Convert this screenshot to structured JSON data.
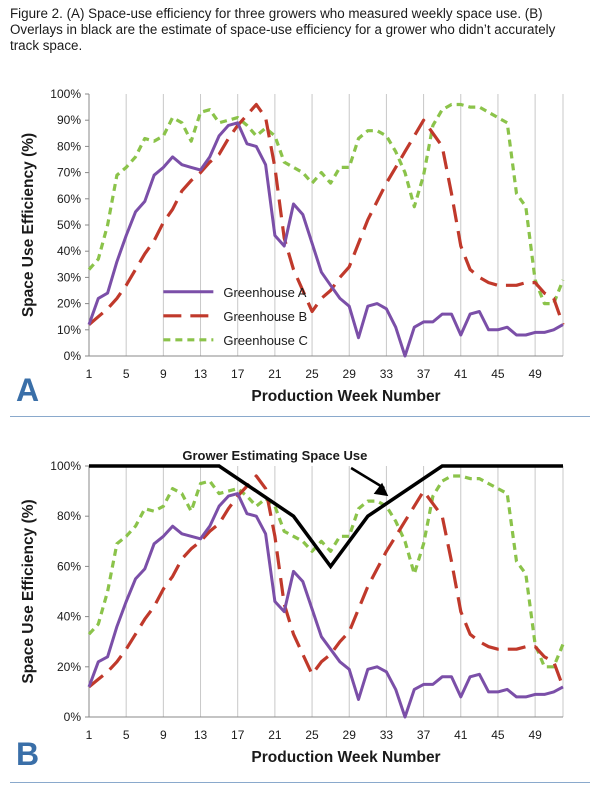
{
  "caption": "Figure 2. (A) Space-use efficiency for three growers who measured weekly space use. (B) Overlays in black are the estimate of space-use efficiency for a grower who didn’t accurately track space.",
  "colors": {
    "A": "#7b4fa8",
    "B": "#c0392b",
    "C": "#8bc34a",
    "grower": "#000000",
    "grid": "#c8c8c8",
    "letter": "#3a6fa8"
  },
  "chart_data": [
    {
      "type": "line",
      "panel_label": "A",
      "xlabel": "Production Week Number",
      "ylabel": "Space Use Efficiency (%)",
      "ylim": [
        0,
        100
      ],
      "yticks": [
        0,
        10,
        20,
        30,
        40,
        50,
        60,
        70,
        80,
        90,
        100
      ],
      "ytick_suffix": "%",
      "xlim": [
        1,
        52
      ],
      "xticks": [
        1,
        5,
        9,
        13,
        17,
        21,
        25,
        29,
        33,
        37,
        41,
        45,
        49
      ],
      "grid": "vertical",
      "legend": "inside-lower-left",
      "series": [
        {
          "name": "Greenhouse A",
          "style": "solid",
          "color_key": "A",
          "values": [
            12,
            22,
            24,
            36,
            46,
            55,
            59,
            69,
            72,
            76,
            73,
            72,
            71,
            76,
            84,
            88,
            89,
            81,
            80,
            73,
            46,
            42,
            58,
            54,
            43,
            32,
            27,
            22,
            19,
            7,
            19,
            20,
            18,
            11,
            0,
            11,
            13,
            13,
            16,
            16,
            8,
            16,
            17,
            10,
            10,
            11,
            8,
            8,
            9,
            9,
            10,
            12
          ]
        },
        {
          "name": "Greenhouse B",
          "style": "dashed",
          "color_key": "B",
          "values": [
            12,
            15,
            18,
            22,
            27,
            33,
            39,
            44,
            51,
            56,
            63,
            67,
            70,
            74,
            77,
            83,
            88,
            92,
            96,
            91,
            72,
            45,
            33,
            25,
            17,
            22,
            25,
            30,
            34,
            43,
            52,
            59,
            66,
            72,
            78,
            84,
            90,
            85,
            80,
            62,
            42,
            33,
            30,
            28,
            27,
            27,
            27,
            28,
            28,
            24,
            22,
            12
          ]
        },
        {
          "name": "Greenhouse C",
          "style": "dashed",
          "color_key": "C",
          "values": [
            33,
            37,
            50,
            69,
            72,
            76,
            83,
            82,
            84,
            91,
            89,
            82,
            93,
            94,
            89,
            90,
            91,
            88,
            84,
            87,
            84,
            74,
            72,
            70,
            66,
            70,
            66,
            72,
            72,
            83,
            86,
            86,
            84,
            78,
            70,
            57,
            69,
            88,
            94,
            96,
            96,
            95,
            95,
            93,
            91,
            89,
            62,
            57,
            29,
            20,
            20,
            29
          ]
        }
      ]
    },
    {
      "type": "line",
      "panel_label": "B",
      "xlabel": "Production Week Number",
      "ylabel": "Space Use Efficiency (%)",
      "ylim": [
        0,
        100
      ],
      "yticks": [
        0,
        20,
        40,
        60,
        80,
        100
      ],
      "ytick_suffix": "%",
      "xlim": [
        1,
        52
      ],
      "xticks": [
        1,
        5,
        9,
        13,
        17,
        21,
        25,
        29,
        33,
        37,
        41,
        45,
        49
      ],
      "grid": "vertical",
      "annotation": "Grower Estimating Space Use",
      "overlay": {
        "x": [
          1,
          15,
          23,
          27,
          31,
          39,
          52
        ],
        "values": [
          100,
          100,
          80,
          60,
          80,
          100,
          100
        ]
      },
      "series": [
        {
          "name": "Greenhouse A",
          "style": "solid",
          "color_key": "A",
          "values": [
            12,
            22,
            24,
            36,
            46,
            55,
            59,
            69,
            72,
            76,
            73,
            72,
            71,
            76,
            84,
            88,
            89,
            81,
            80,
            73,
            46,
            42,
            58,
            54,
            43,
            32,
            27,
            22,
            19,
            7,
            19,
            20,
            18,
            11,
            0,
            11,
            13,
            13,
            16,
            16,
            8,
            16,
            17,
            10,
            10,
            11,
            8,
            8,
            9,
            9,
            10,
            12
          ]
        },
        {
          "name": "Greenhouse B",
          "style": "dashed",
          "color_key": "B",
          "values": [
            12,
            15,
            18,
            22,
            27,
            33,
            39,
            44,
            51,
            56,
            63,
            67,
            70,
            74,
            77,
            83,
            88,
            92,
            96,
            91,
            72,
            45,
            33,
            25,
            17,
            22,
            25,
            30,
            34,
            43,
            52,
            59,
            66,
            72,
            78,
            84,
            90,
            85,
            80,
            62,
            42,
            33,
            30,
            28,
            27,
            27,
            27,
            28,
            28,
            24,
            22,
            12
          ]
        },
        {
          "name": "Greenhouse C",
          "style": "dashed",
          "color_key": "C",
          "values": [
            33,
            37,
            50,
            69,
            72,
            76,
            83,
            82,
            84,
            91,
            89,
            82,
            93,
            94,
            89,
            90,
            91,
            88,
            84,
            87,
            84,
            74,
            72,
            70,
            66,
            70,
            66,
            72,
            72,
            83,
            86,
            86,
            84,
            78,
            70,
            57,
            69,
            88,
            94,
            96,
            96,
            95,
            95,
            93,
            91,
            89,
            62,
            57,
            29,
            20,
            20,
            29
          ]
        }
      ]
    }
  ]
}
